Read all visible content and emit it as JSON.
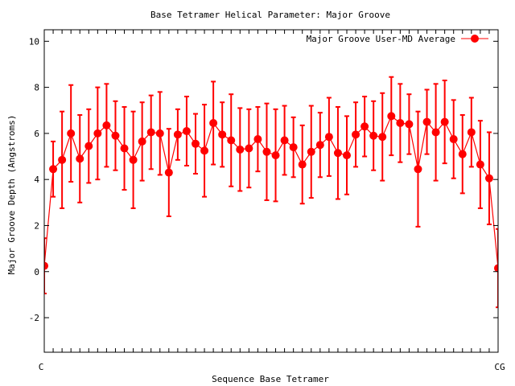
{
  "chart_data": {
    "type": "line",
    "title": "Base Tetramer Helical Parameter: Major Groove",
    "xlabel": "Sequence Base Tetramer",
    "ylabel": "Major Groove Depth (Angstroms)",
    "ylim": [
      -3.5,
      10.5
    ],
    "yticks": [
      -2,
      0,
      2,
      4,
      6,
      8,
      10
    ],
    "grid": false,
    "legend_position": "top-right",
    "colors": {
      "series": "#ff0000",
      "axis": "#000000",
      "background": "#ffffff"
    },
    "xtick_labels_visible": [
      "C",
      "CG"
    ],
    "series": [
      {
        "name": "Major Groove User-MD Average",
        "values": [
          0.25,
          4.45,
          4.85,
          6.0,
          4.9,
          5.45,
          6.0,
          6.35,
          5.9,
          5.35,
          4.85,
          5.65,
          6.05,
          6.0,
          4.3,
          5.95,
          6.1,
          5.55,
          5.25,
          6.45,
          5.95,
          5.7,
          5.3,
          5.35,
          5.75,
          5.2,
          5.05,
          5.7,
          5.4,
          4.65,
          5.2,
          5.5,
          5.85,
          5.15,
          5.05,
          5.95,
          6.3,
          5.9,
          5.85,
          6.75,
          6.45,
          6.4,
          4.45,
          6.5,
          6.05,
          6.5,
          5.75,
          5.1,
          6.05,
          4.65,
          4.05,
          0.15
        ],
        "errors": [
          1.2,
          1.2,
          2.1,
          2.1,
          1.9,
          1.6,
          2.0,
          1.8,
          1.5,
          1.8,
          2.1,
          1.7,
          1.6,
          1.8,
          1.9,
          1.1,
          1.5,
          1.3,
          2.0,
          1.8,
          1.4,
          2.0,
          1.8,
          1.7,
          1.4,
          2.1,
          2.0,
          1.5,
          1.3,
          1.7,
          2.0,
          1.4,
          1.7,
          2.0,
          1.7,
          1.4,
          1.3,
          1.5,
          1.9,
          1.7,
          1.7,
          1.3,
          2.5,
          1.4,
          2.1,
          1.8,
          1.7,
          1.7,
          1.5,
          1.9,
          2.0,
          1.7
        ]
      }
    ]
  }
}
